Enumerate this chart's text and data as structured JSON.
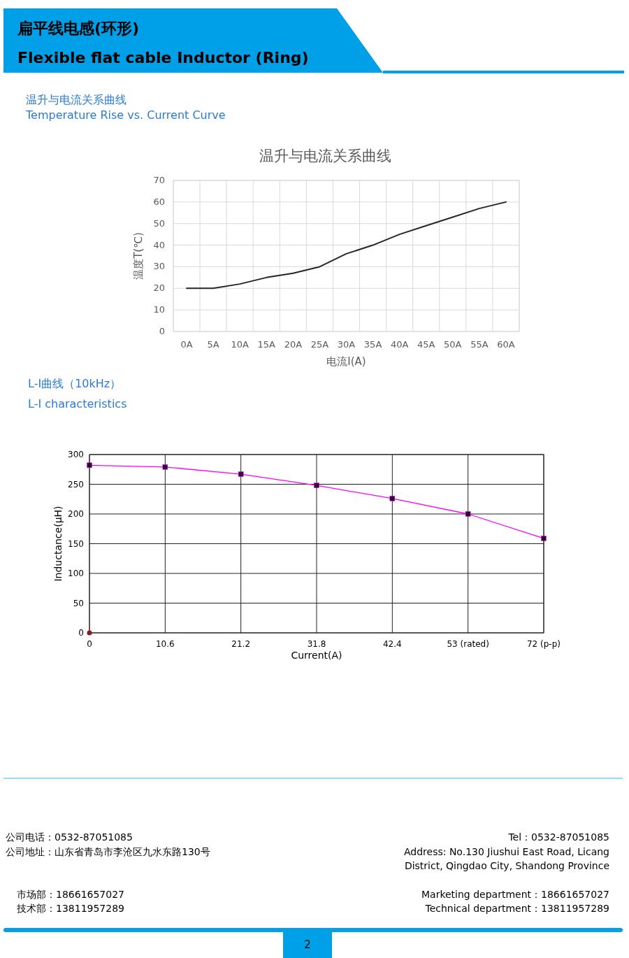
{
  "chart_data": [
    {
      "type": "line",
      "title": "温升与电流关系曲线",
      "xlabel": "电流I(A)",
      "ylabel": "温度T(℃)",
      "categories": [
        "0A",
        "5A",
        "10A",
        "15A",
        "20A",
        "25A",
        "30A",
        "35A",
        "40A",
        "45A",
        "50A",
        "55A",
        "60A"
      ],
      "series": [
        {
          "color": "#262626",
          "values": [
            20,
            20,
            22,
            25,
            27,
            30,
            36,
            40,
            45,
            49,
            53,
            57,
            60
          ]
        }
      ],
      "ylim": [
        0,
        70
      ],
      "yticks": [
        0,
        10,
        20,
        30,
        40,
        50,
        60,
        70
      ],
      "grid": true,
      "marker": "none",
      "annotations": [
        "扁平线电感(环形)",
        "Flexible flat cable Inductor (Ring)",
        "温升与电流关系曲线",
        "Temperature Rise vs. Current Curve"
      ]
    },
    {
      "type": "line",
      "title": "L-I曲线（10kHz）",
      "subtitle": "L-I characteristics",
      "xlabel": "Current(A)",
      "ylabel": "Inductance(μH)",
      "categories": [
        "0",
        "10.6",
        "21.2",
        "31.8",
        "42.4",
        "53 (rated)",
        "72 (p-p)"
      ],
      "series": [
        {
          "color": "#ff00ff",
          "values": [
            282,
            279,
            267,
            248,
            226,
            200,
            159
          ]
        },
        {
          "type": "scatter",
          "color": "#8b1a1a",
          "marker": "circle",
          "values": [
            0,
            null,
            null,
            null,
            null,
            null,
            null
          ]
        }
      ],
      "ylim": [
        0,
        300
      ],
      "yticks": [
        0,
        50,
        100,
        150,
        200,
        250,
        300
      ],
      "grid": true,
      "marker": "square",
      "annotations": [
        "公司电话：0532-87051085",
        "公司地址：山东省青岛市李沧区九水东路130号",
        "Tel：0532-87051085",
        "Address: No.130 Jiushui East Road, Licang",
        "District, Qingdao City, Shandong Province",
        "市场部：18661657027",
        "技术部：13811957289",
        "Marketing department：18661657027",
        "Technical department：13811957289",
        "2"
      ]
    }
  ]
}
